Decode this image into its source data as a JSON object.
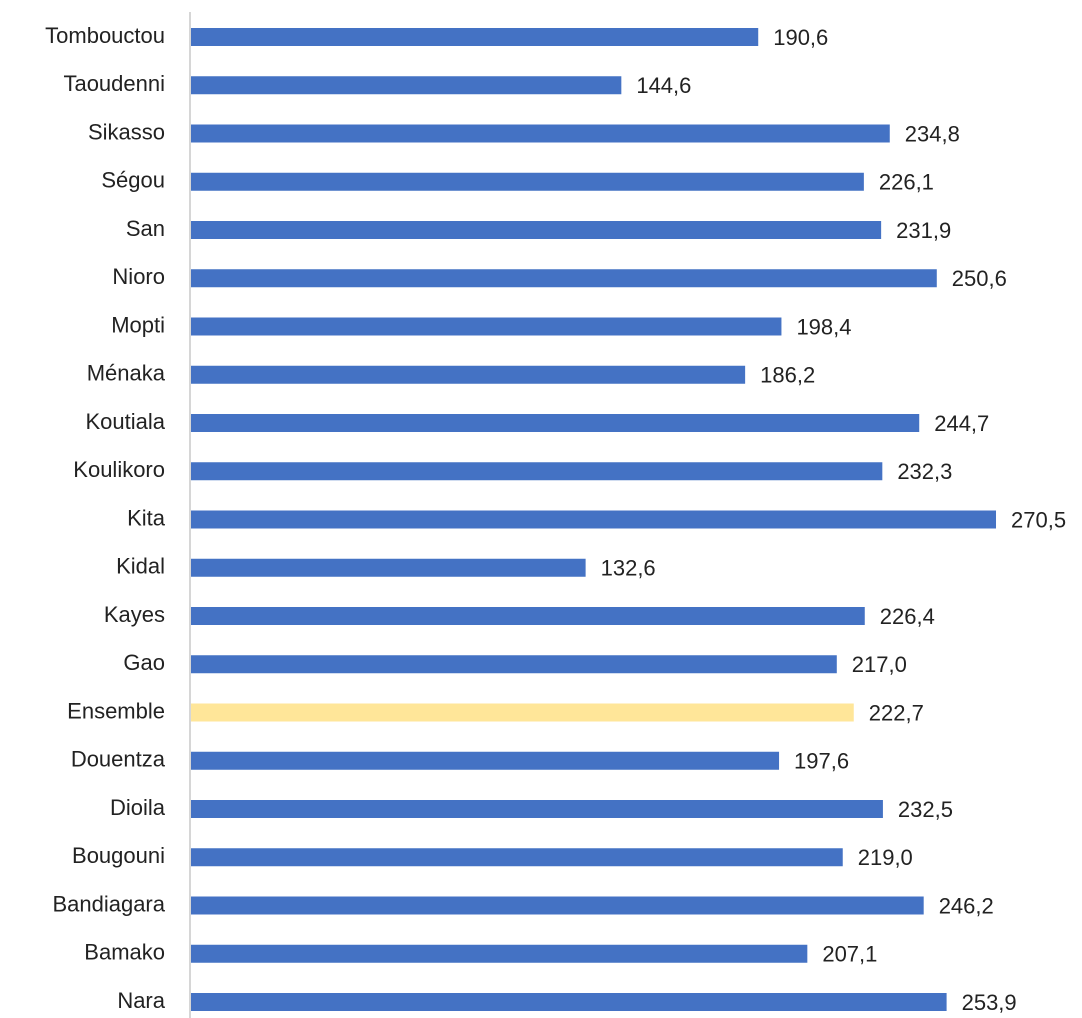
{
  "chart_data": {
    "type": "barh",
    "categories": [
      "Tombouctou",
      "Taoudenni",
      "Sikasso",
      "Ségou",
      "San",
      "Nioro",
      "Mopti",
      "Ménaka",
      "Koutiala",
      "Koulikoro",
      "Kita",
      "Kidal",
      "Kayes",
      "Gao",
      "Ensemble",
      "Douentza",
      "Dioila",
      "Bougouni",
      "Bandiagara",
      "Bamako",
      "Nara"
    ],
    "values": [
      190.6,
      144.6,
      234.8,
      226.1,
      231.9,
      250.6,
      198.4,
      186.2,
      244.7,
      232.3,
      270.5,
      132.6,
      226.4,
      217.0,
      222.7,
      197.6,
      232.5,
      219.0,
      246.2,
      207.1,
      253.9
    ],
    "value_labels": [
      "190,6",
      "144,6",
      "234,8",
      "226,1",
      "231,9",
      "250,6",
      "198,4",
      "186,2",
      "244,7",
      "232,3",
      "270,5",
      "132,6",
      "226,4",
      "217,0",
      "222,7",
      "197,6",
      "232,5",
      "219,0",
      "246,2",
      "207,1",
      "253,9"
    ],
    "colors": [
      "#4472c4",
      "#4472c4",
      "#4472c4",
      "#4472c4",
      "#4472c4",
      "#4472c4",
      "#4472c4",
      "#4472c4",
      "#4472c4",
      "#4472c4",
      "#4472c4",
      "#4472c4",
      "#4472c4",
      "#4472c4",
      "#ffe699",
      "#4472c4",
      "#4472c4",
      "#4472c4",
      "#4472c4",
      "#4472c4",
      "#4472c4"
    ]
  }
}
